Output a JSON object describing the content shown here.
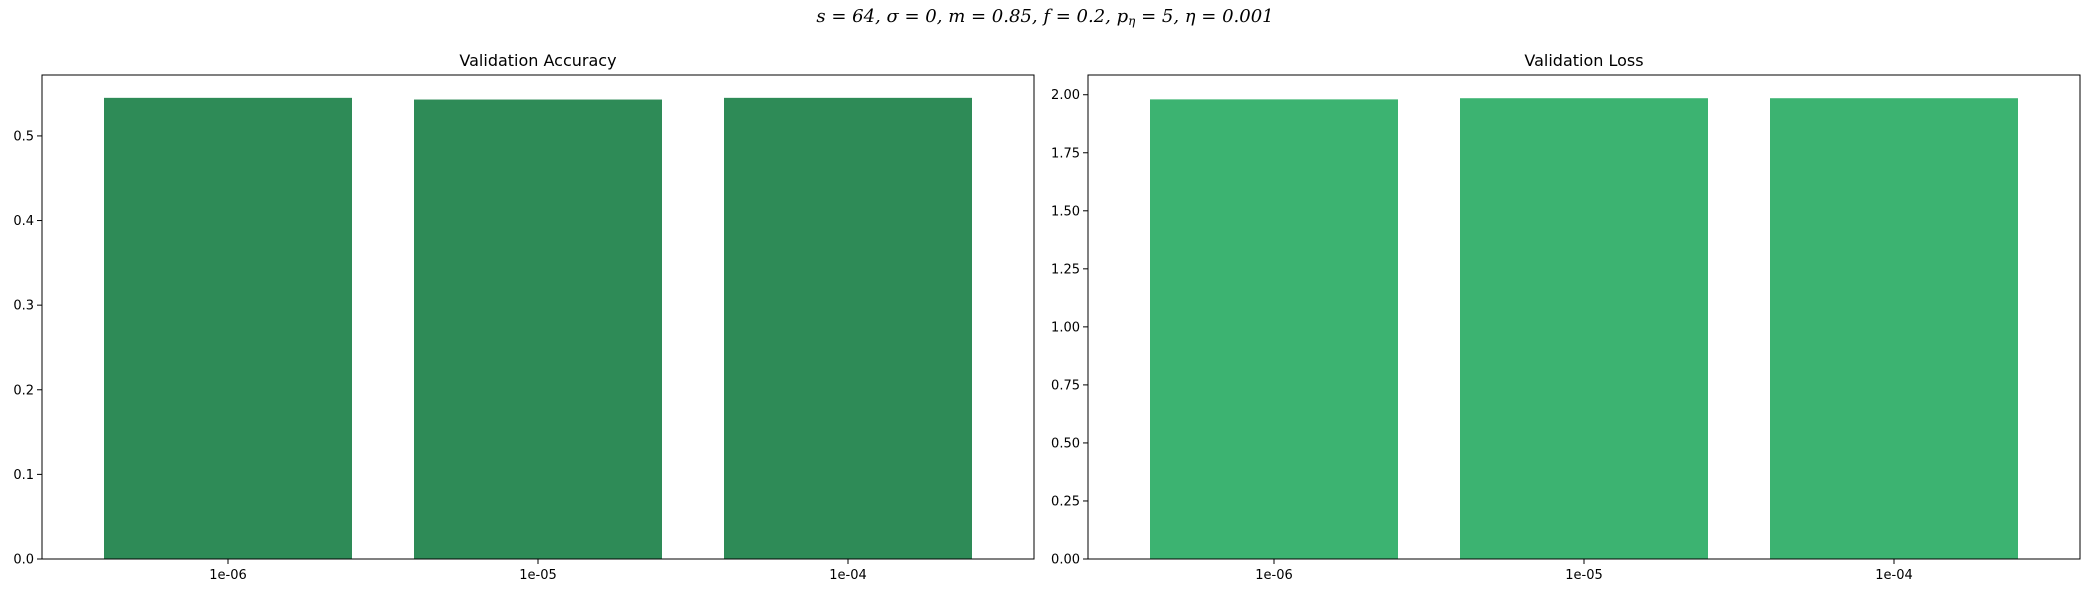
{
  "suptitle": {
    "s": "s = 64",
    "sigma": "σ = 0",
    "m": "m = 0.85",
    "f": "f = 0.2",
    "p_base": "p",
    "p_sub": "η",
    "p_val": " = 5",
    "eta": "η = 0.001",
    "sep": ", "
  },
  "chart_data": [
    {
      "type": "bar",
      "title": "Validation Accuracy",
      "categories": [
        "1e-06",
        "1e-05",
        "1e-04"
      ],
      "values": [
        0.545,
        0.543,
        0.545
      ],
      "ylim": [
        0,
        0.572
      ],
      "yticks": [
        0.0,
        0.1,
        0.2,
        0.3,
        0.4,
        0.5
      ],
      "ytick_labels": [
        "0.0",
        "0.1",
        "0.2",
        "0.3",
        "0.4",
        "0.5"
      ],
      "color": "#2e8b57",
      "xlabel": "",
      "ylabel": "",
      "grid": false
    },
    {
      "type": "bar",
      "title": "Validation Loss",
      "categories": [
        "1e-06",
        "1e-05",
        "1e-04"
      ],
      "values": [
        1.98,
        1.985,
        1.985
      ],
      "ylim": [
        0,
        2.085
      ],
      "yticks": [
        0.0,
        0.25,
        0.5,
        0.75,
        1.0,
        1.25,
        1.5,
        1.75,
        2.0
      ],
      "ytick_labels": [
        "0.00",
        "0.25",
        "0.50",
        "0.75",
        "1.00",
        "1.25",
        "1.50",
        "1.75",
        "2.00"
      ],
      "color": "#3cb371",
      "xlabel": "",
      "ylabel": "",
      "grid": false
    }
  ]
}
